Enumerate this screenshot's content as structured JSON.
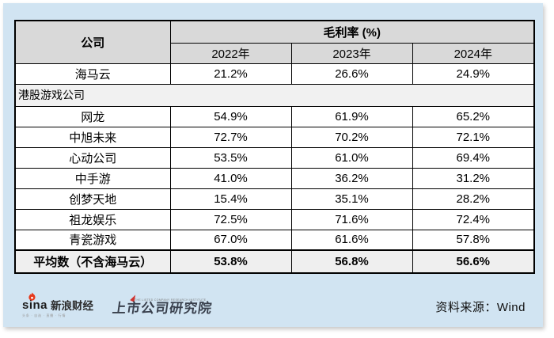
{
  "colors": {
    "panel_bg": "#d1e4f2",
    "header_bg": "#d9d9d9",
    "section_row_bg": "#f1f1f1",
    "average_row_bg": "#efefef",
    "border": "#000000",
    "sina_flame_red": "#e6391c",
    "institute_accent_red": "#cf3430",
    "institute_text": "#39404d"
  },
  "table": {
    "header": {
      "company": "公司",
      "group": "毛利率 (%)",
      "years": [
        "2022年",
        "2023年",
        "2024年"
      ]
    },
    "rows": [
      {
        "type": "data",
        "company": "海马云",
        "values": [
          "21.2%",
          "26.6%",
          "24.9%"
        ]
      },
      {
        "type": "section",
        "company": "港股游戏公司",
        "values": []
      },
      {
        "type": "data",
        "company": "网龙",
        "values": [
          "54.9%",
          "61.9%",
          "65.2%"
        ]
      },
      {
        "type": "data",
        "company": "中旭未来",
        "values": [
          "72.7%",
          "70.2%",
          "72.1%"
        ]
      },
      {
        "type": "data",
        "company": "心动公司",
        "values": [
          "53.5%",
          "61.0%",
          "69.4%"
        ]
      },
      {
        "type": "data",
        "company": "中手游",
        "values": [
          "41.0%",
          "36.2%",
          "31.2%"
        ]
      },
      {
        "type": "data",
        "company": "创梦天地",
        "values": [
          "15.4%",
          "35.1%",
          "28.2%"
        ]
      },
      {
        "type": "data",
        "company": "祖龙娱乐",
        "values": [
          "72.5%",
          "71.6%",
          "72.4%"
        ]
      },
      {
        "type": "data",
        "company": "青瓷游戏",
        "values": [
          "67.0%",
          "61.6%",
          "57.8%"
        ]
      },
      {
        "type": "average",
        "company": "平均数（不含海马云）",
        "values": [
          "53.8%",
          "56.8%",
          "56.6%"
        ]
      }
    ]
  },
  "footer": {
    "sina_word": "sina",
    "sina_cn": "新浪财经",
    "sina_tagline": "头条 · 自选 · 直播 · 行情",
    "institute_en": "THE LISTED COMPANY RESEARCH INSTITUTE",
    "institute_cn": "上市公司研究院",
    "source": "资料来源：Wind"
  },
  "chart_data": {
    "type": "table",
    "title": "毛利率 (%)",
    "columns": [
      "公司",
      "2022年",
      "2023年",
      "2024年"
    ],
    "unit": "%",
    "section_label": "港股游戏公司",
    "rows": [
      {
        "company": "海马云",
        "values": [
          21.2,
          26.6,
          24.9
        ],
        "group": ""
      },
      {
        "company": "网龙",
        "values": [
          54.9,
          61.9,
          65.2
        ],
        "group": "港股游戏公司"
      },
      {
        "company": "中旭未来",
        "values": [
          72.7,
          70.2,
          72.1
        ],
        "group": "港股游戏公司"
      },
      {
        "company": "心动公司",
        "values": [
          53.5,
          61.0,
          69.4
        ],
        "group": "港股游戏公司"
      },
      {
        "company": "中手游",
        "values": [
          41.0,
          36.2,
          31.2
        ],
        "group": "港股游戏公司"
      },
      {
        "company": "创梦天地",
        "values": [
          15.4,
          35.1,
          28.2
        ],
        "group": "港股游戏公司"
      },
      {
        "company": "祖龙娱乐",
        "values": [
          72.5,
          71.6,
          72.4
        ],
        "group": "港股游戏公司"
      },
      {
        "company": "青瓷游戏",
        "values": [
          67.0,
          61.6,
          57.8
        ],
        "group": "港股游戏公司"
      },
      {
        "company": "平均数（不含海马云）",
        "values": [
          53.8,
          56.8,
          56.6
        ],
        "group": "平均"
      }
    ],
    "source": "资料来源：Wind"
  }
}
